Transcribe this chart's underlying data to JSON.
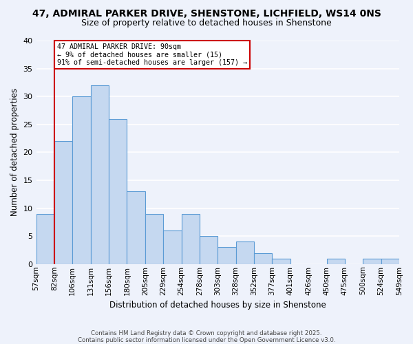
{
  "title": "47, ADMIRAL PARKER DRIVE, SHENSTONE, LICHFIELD, WS14 0NS",
  "subtitle": "Size of property relative to detached houses in Shenstone",
  "xlabel": "Distribution of detached houses by size in Shenstone",
  "ylabel": "Number of detached properties",
  "bar_values": [
    9,
    22,
    30,
    32,
    26,
    13,
    9,
    6,
    9,
    5,
    3,
    4,
    2,
    1,
    0,
    0,
    1,
    0,
    1,
    1
  ],
  "bin_labels": [
    "57sqm",
    "82sqm",
    "106sqm",
    "131sqm",
    "156sqm",
    "180sqm",
    "205sqm",
    "229sqm",
    "254sqm",
    "278sqm",
    "303sqm",
    "328sqm",
    "352sqm",
    "377sqm",
    "401sqm",
    "426sqm",
    "450sqm",
    "475sqm",
    "500sqm",
    "524sqm",
    "549sqm"
  ],
  "bar_color": "#c5d8f0",
  "bar_edge_color": "#5b9bd5",
  "bg_color": "#eef2fb",
  "grid_color": "#ffffff",
  "marker_label_line1": "47 ADMIRAL PARKER DRIVE: 90sqm",
  "marker_label_line2": "← 9% of detached houses are smaller (15)",
  "marker_label_line3": "91% of semi-detached houses are larger (157) →",
  "marker_color": "#cc0000",
  "ylim": [
    0,
    40
  ],
  "yticks": [
    0,
    5,
    10,
    15,
    20,
    25,
    30,
    35,
    40
  ],
  "footnote1": "Contains HM Land Registry data © Crown copyright and database right 2025.",
  "footnote2": "Contains public sector information licensed under the Open Government Licence v3.0."
}
